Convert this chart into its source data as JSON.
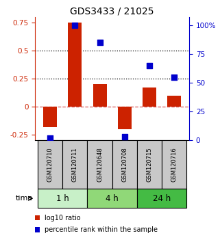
{
  "title": "GDS3433 / 21025",
  "samples": [
    "GSM120710",
    "GSM120711",
    "GSM120648",
    "GSM120708",
    "GSM120715",
    "GSM120716"
  ],
  "log10_ratio": [
    -0.18,
    0.75,
    0.2,
    -0.2,
    0.17,
    0.1
  ],
  "percentile_rank": [
    2,
    100,
    85,
    3,
    65,
    55
  ],
  "groups": [
    {
      "label": "1 h",
      "indices": [
        0,
        1
      ],
      "color": "#c8f0c8"
    },
    {
      "label": "4 h",
      "indices": [
        2,
        3
      ],
      "color": "#90d878"
    },
    {
      "label": "24 h",
      "indices": [
        4,
        5
      ],
      "color": "#44bb44"
    }
  ],
  "bar_color": "#cc2200",
  "dot_color": "#0000cc",
  "ylim_left": [
    -0.3,
    0.8
  ],
  "ylim_right": [
    0,
    107
  ],
  "yticks_left": [
    -0.25,
    0.0,
    0.25,
    0.5,
    0.75
  ],
  "yticks_right": [
    0,
    25,
    50,
    75,
    100
  ],
  "ytick_labels_right": [
    "0",
    "25",
    "50",
    "75",
    "100%"
  ],
  "hlines": [
    0.25,
    0.5
  ],
  "zero_line": 0.0,
  "bar_width": 0.55,
  "dot_size": 28,
  "background_color": "#ffffff",
  "plot_bg": "#ffffff",
  "legend_items": [
    "log10 ratio",
    "percentile rank within the sample"
  ],
  "left_axis_color": "#cc2200",
  "right_axis_color": "#0000cc",
  "sample_box_color": "#c8c8c8",
  "time_label": "time"
}
